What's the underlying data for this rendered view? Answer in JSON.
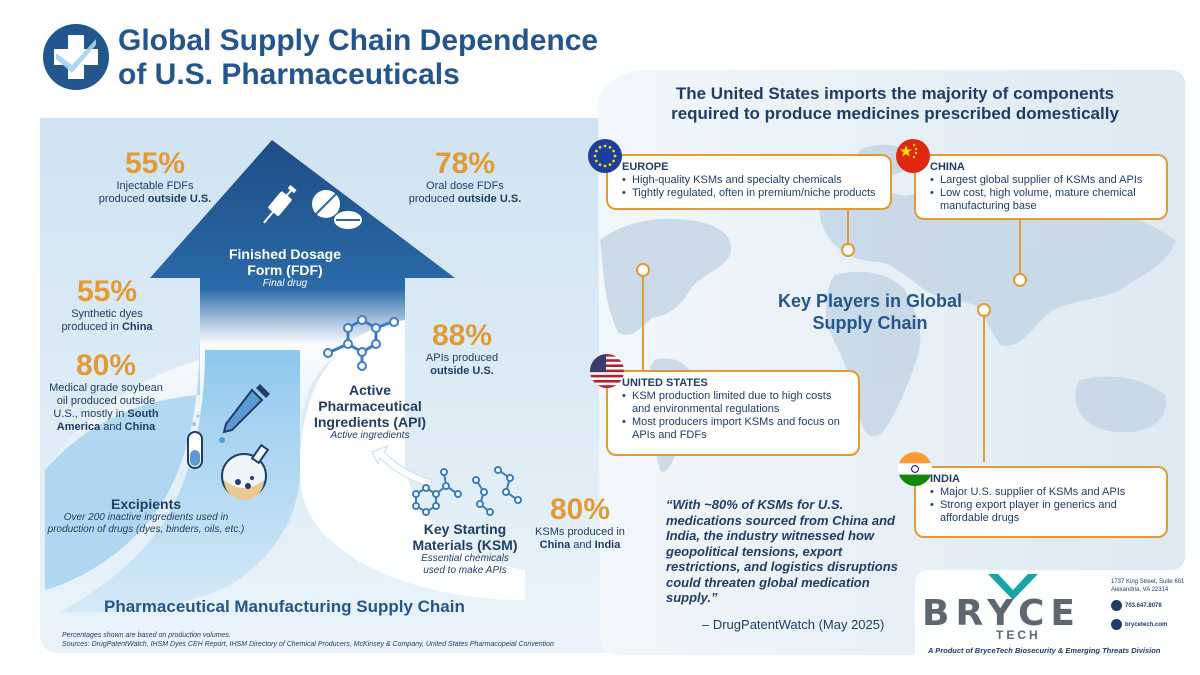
{
  "header": {
    "title_line1": "Global Supply Chain Dependence",
    "title_line2": "of U.S. Pharmaceuticals"
  },
  "colors": {
    "navy": "#1f3d66",
    "accent": "#e29a35",
    "title_blue": "#24568e",
    "light_blue": "#a6d2ee"
  },
  "icons": [
    "medical-cross-check-icon",
    "syringe-icon",
    "pills-icon",
    "molecule-icon",
    "dropper-icon",
    "test-tube-icon",
    "flask-icon",
    "arrow-icon"
  ],
  "stats": {
    "injectable": {
      "pct": "55%",
      "line1": "Injectable FDFs",
      "line2_pre": "produced ",
      "line2_bold": "outside U.S."
    },
    "oral": {
      "pct": "78%",
      "line1": "Oral dose FDFs",
      "line2_pre": "produced ",
      "line2_bold": "outside U.S."
    },
    "dyes": {
      "pct": "55%",
      "line1": "Synthetic dyes",
      "line2_pre": "produced in ",
      "line2_bold": "China"
    },
    "soybean": {
      "pct": "80%",
      "line1": "Medical grade soybean",
      "line2": "oil produced outside",
      "line3_pre": "U.S., mostly in ",
      "line3_bold": "South",
      "line4_bold1": "America",
      "line4_mid": " and ",
      "line4_bold2": "China"
    },
    "apis": {
      "pct": "88%",
      "line1": "APIs produced",
      "line2_bold": "outside U.S."
    },
    "ksms": {
      "pct": "80%",
      "line1": "KSMs produced in",
      "line2_bold1": "China",
      "line2_mid": " and ",
      "line2_bold2": "India"
    }
  },
  "stages": {
    "fdf": {
      "title1": "Finished Dosage",
      "title2": "Form (FDF)",
      "sub": "Final drug"
    },
    "api": {
      "title1": "Active",
      "title2": "Pharmaceutical",
      "title3": "Ingredients (API)",
      "sub": "Active ingredients"
    },
    "excipients": {
      "title": "Excipients",
      "sub1": "Over 200 inactive ingredients used in",
      "sub2": "production of drugs (dyes, binders, oils, etc.)"
    },
    "ksm": {
      "title1": "Key Starting",
      "title2": "Materials (KSM)",
      "sub1": "Essential chemicals",
      "sub2": "used to make APIs"
    }
  },
  "left_footer": {
    "chain_title": "Pharmaceutical Manufacturing Supply Chain",
    "note": "Percentages shown are based on production volumes.",
    "sources": "Sources: DrugPatentWatch, IHSM Dyes CEH Report, IHSM Directory of Chemical Producers, McKinsey & Company, United States Pharmacopeial Convention"
  },
  "map_panel": {
    "headline1": "The United States imports the majority of components",
    "headline2": "required to produce medicines prescribed domestically",
    "center1": "Key Players in Global",
    "center2": "Supply Chain",
    "regions": {
      "europe": {
        "name": "EUROPE",
        "bullets": [
          "High-quality KSMs and specialty chemicals",
          "Tightly regulated, often in premium/niche products"
        ]
      },
      "china": {
        "name": "CHINA",
        "bullets": [
          "Largest global supplier of KSMs and APIs",
          "Low cost, high volume, mature chemical manufacturing base"
        ]
      },
      "us": {
        "name": "UNITED STATES",
        "bullets": [
          "KSM production limited due to high costs and environmental regulations",
          "Most producers import KSMs and focus on APIs and FDFs"
        ]
      },
      "india": {
        "name": "INDIA",
        "bullets": [
          "Major U.S. supplier of KSMs and APIs",
          "Strong export player in generics and affordable drugs"
        ]
      }
    }
  },
  "quote": {
    "text": "“With ~80% of KSMs for U.S. medications sourced from China and India, the industry witnessed how geopolitical tensions, export restrictions, and logistics disruptions could threaten global medication supply.”",
    "attribution": "– DrugPatentWatch (May 2025)"
  },
  "company": {
    "logo1": "BRYCE",
    "logo2": "TECH",
    "address1": "1737 King Street, Suite 601",
    "address2": "Alexandria, VA 22314",
    "phone": "703.647.8078",
    "web": "brycetech.com",
    "tagline": "A Product of BryceTech Biosecurity & Emerging Threats Division"
  }
}
